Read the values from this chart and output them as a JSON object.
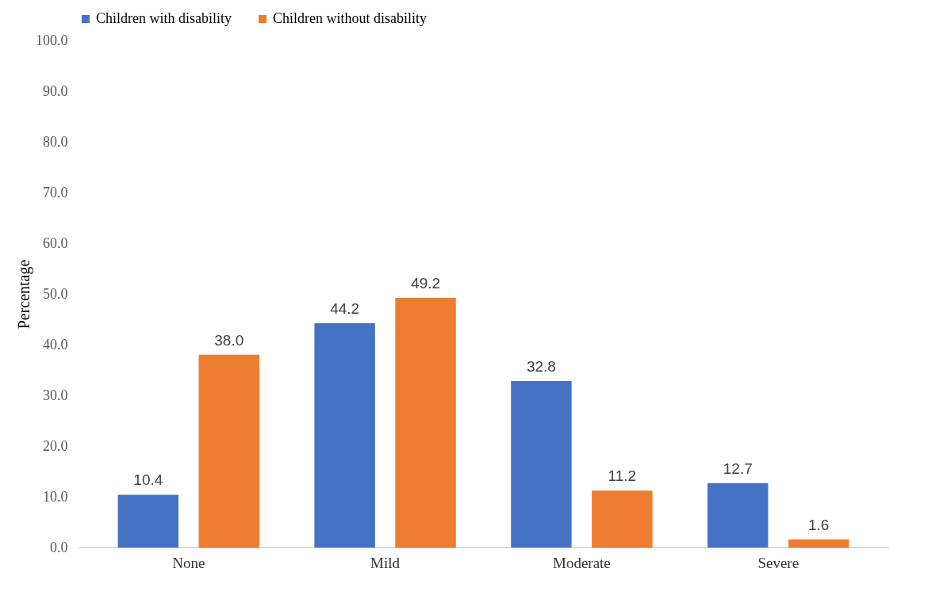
{
  "chart_data": {
    "type": "bar",
    "ylabel": "Percentage",
    "categories": [
      "None",
      "Mild",
      "Moderate",
      "Severe"
    ],
    "series": [
      {
        "name": "Children with disability",
        "color": "#4472c4",
        "values": [
          10.4,
          44.2,
          32.8,
          12.7
        ],
        "value_labels": [
          "10.4",
          "44.2",
          "32.8",
          "12.7"
        ]
      },
      {
        "name": "Children without disability",
        "color": "#ed7d31",
        "values": [
          38.0,
          49.2,
          11.2,
          1.6
        ],
        "value_labels": [
          "38.0",
          "49.2",
          "11.2",
          "1.6"
        ]
      }
    ],
    "ylim": [
      0,
      100
    ],
    "yticks": [
      {
        "value": 0,
        "label": "0.0"
      },
      {
        "value": 10,
        "label": "10.0"
      },
      {
        "value": 20,
        "label": "20.0"
      },
      {
        "value": 30,
        "label": "30.0"
      },
      {
        "value": 40,
        "label": "40.0"
      },
      {
        "value": 50,
        "label": "50.0"
      },
      {
        "value": 60,
        "label": "60.0"
      },
      {
        "value": 70,
        "label": "70.0"
      },
      {
        "value": 80,
        "label": "80.0"
      },
      {
        "value": 90,
        "label": "90.0"
      },
      {
        "value": 100,
        "label": "100.0"
      }
    ],
    "legend": "top",
    "grid": false
  }
}
